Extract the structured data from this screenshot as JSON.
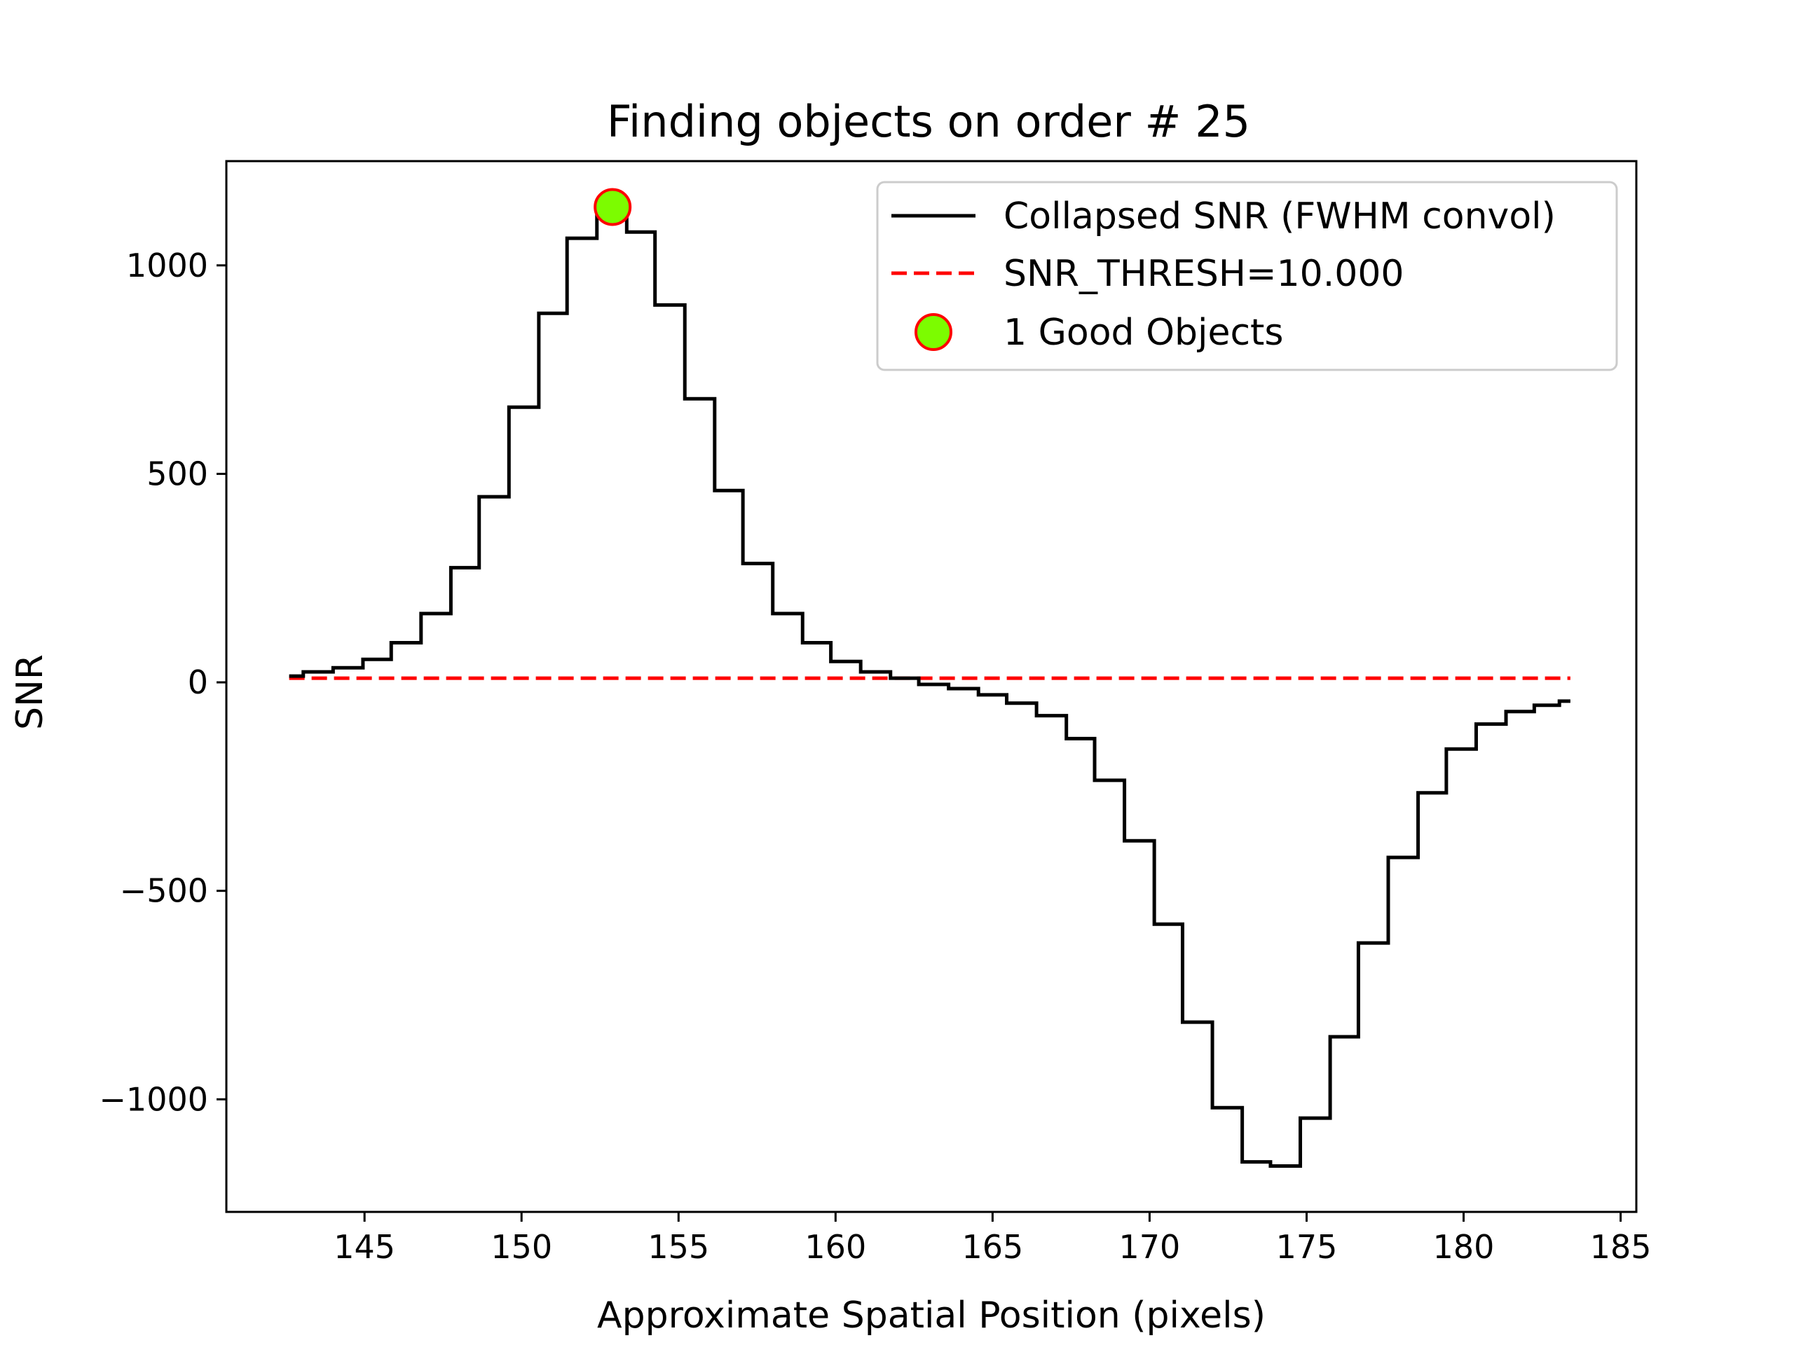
{
  "chart_data": {
    "type": "line",
    "title": "Finding objects on order # 25",
    "xlabel": "Approximate Spatial Position (pixels)",
    "ylabel": "SNR",
    "xlim": [
      140.6,
      185.5
    ],
    "ylim": [
      -1270,
      1250
    ],
    "xticks": [
      145,
      150,
      155,
      160,
      165,
      170,
      175,
      180,
      185
    ],
    "xtick_labels": [
      "145",
      "150",
      "155",
      "160",
      "165",
      "170",
      "175",
      "180",
      "185"
    ],
    "yticks": [
      -1000,
      -500,
      0,
      500,
      1000
    ],
    "ytick_labels": [
      "−1000",
      "−500",
      "0",
      "500",
      "1000"
    ],
    "grid": false,
    "legend_position": "top-right",
    "series": [
      {
        "name": "Collapsed SNR (FWHM convol)",
        "style": "steps-mid",
        "color": "#000000",
        "x": [
          142.6,
          143.5,
          144.5,
          145.4,
          146.3,
          147.3,
          148.2,
          149.1,
          150.1,
          151.0,
          151.9,
          152.9,
          153.8,
          154.7,
          155.7,
          156.6,
          157.5,
          158.5,
          159.4,
          160.3,
          161.3,
          162.2,
          163.1,
          164.1,
          165.0,
          165.9,
          166.9,
          167.8,
          168.7,
          169.7,
          170.6,
          171.5,
          172.5,
          173.4,
          174.3,
          175.3,
          176.2,
          177.1,
          178.1,
          179.0,
          179.9,
          180.9,
          181.8,
          182.7,
          183.4
        ],
        "y": [
          15,
          25,
          35,
          55,
          95,
          165,
          275,
          445,
          660,
          885,
          1065,
          1135,
          1080,
          905,
          680,
          460,
          285,
          165,
          95,
          50,
          25,
          10,
          -5,
          -15,
          -30,
          -50,
          -80,
          -135,
          -235,
          -380,
          -580,
          -815,
          -1020,
          -1150,
          -1160,
          -1045,
          -850,
          -625,
          -420,
          -265,
          -160,
          -100,
          -70,
          -55,
          -45
        ]
      },
      {
        "name": "SNR_THRESH=10.000",
        "style": "dashed",
        "color": "#ff0000",
        "x": [
          142.6,
          183.4
        ],
        "y": [
          10,
          10
        ]
      },
      {
        "name": "1 Good Objects",
        "style": "marker",
        "color": "#7cfc00",
        "edgecolor": "#ff0000",
        "x": [
          152.9
        ],
        "y": [
          1140
        ]
      }
    ]
  }
}
